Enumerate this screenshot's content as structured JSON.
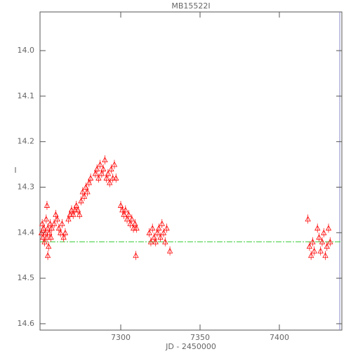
{
  "chart_data": {
    "type": "scatter",
    "title": "MB15522I",
    "xlabel": "JD - 2450000",
    "ylabel": "I",
    "xlim": [
      7249.1,
      7439.4
    ],
    "xticks": [
      7300,
      7350,
      7400
    ],
    "ylim": [
      14.614,
      13.915
    ],
    "yticks": [
      {
        "value": 14.0,
        "label": "14.0"
      },
      14.1,
      14.2,
      14.3,
      14.4,
      14.5,
      14.6
    ],
    "color": "#ff0000",
    "error": 0.01,
    "x": [
      7250,
      7250.5,
      7251,
      7251.5,
      7252,
      7252.5,
      7253,
      7253.5,
      7254,
      7254.5,
      7255,
      7255.5,
      7256,
      7256.5,
      7253.5,
      7254,
      7258,
      7259,
      7260,
      7261,
      7262,
      7263,
      7264,
      7265,
      7267,
      7268,
      7269,
      7270,
      7271,
      7272,
      7273,
      7274,
      7275,
      7276,
      7277,
      7278,
      7279,
      7280,
      7281,
      7284,
      7285,
      7286,
      7287,
      7288,
      7289,
      7290,
      7291,
      7292,
      7293,
      7294,
      7295,
      7296,
      7297,
      7300,
      7301,
      7302,
      7303,
      7304,
      7305,
      7306,
      7307,
      7308,
      7309,
      7309.5,
      7310,
      7318,
      7319,
      7320,
      7321,
      7322,
      7323,
      7324,
      7325,
      7326,
      7327,
      7328,
      7329,
      7331,
      7418,
      7419,
      7420,
      7421,
      7422,
      7424,
      7425,
      7426,
      7427,
      7428,
      7429,
      7430,
      7431,
      7432
    ],
    "values": [
      14.4,
      14.38,
      14.41,
      14.39,
      14.42,
      14.4,
      14.37,
      14.41,
      14.39,
      14.43,
      14.4,
      14.38,
      14.41,
      14.39,
      14.34,
      14.45,
      14.38,
      14.36,
      14.37,
      14.39,
      14.4,
      14.38,
      14.41,
      14.4,
      14.37,
      14.36,
      14.35,
      14.36,
      14.35,
      14.34,
      14.35,
      14.36,
      14.33,
      14.31,
      14.32,
      14.3,
      14.31,
      14.29,
      14.28,
      14.27,
      14.26,
      14.28,
      14.25,
      14.27,
      14.26,
      14.24,
      14.28,
      14.27,
      14.29,
      14.26,
      14.28,
      14.25,
      14.28,
      14.34,
      14.35,
      14.36,
      14.35,
      14.37,
      14.36,
      14.38,
      14.37,
      14.39,
      14.38,
      14.45,
      14.39,
      14.4,
      14.42,
      14.39,
      14.41,
      14.42,
      14.4,
      14.39,
      14.41,
      14.38,
      14.4,
      14.42,
      14.39,
      14.44,
      14.37,
      14.43,
      14.45,
      14.42,
      14.44,
      14.39,
      14.41,
      14.44,
      14.42,
      14.4,
      14.45,
      14.43,
      14.39,
      14.42
    ],
    "reference_line": {
      "value": 14.42,
      "color": "#33cc33"
    }
  }
}
